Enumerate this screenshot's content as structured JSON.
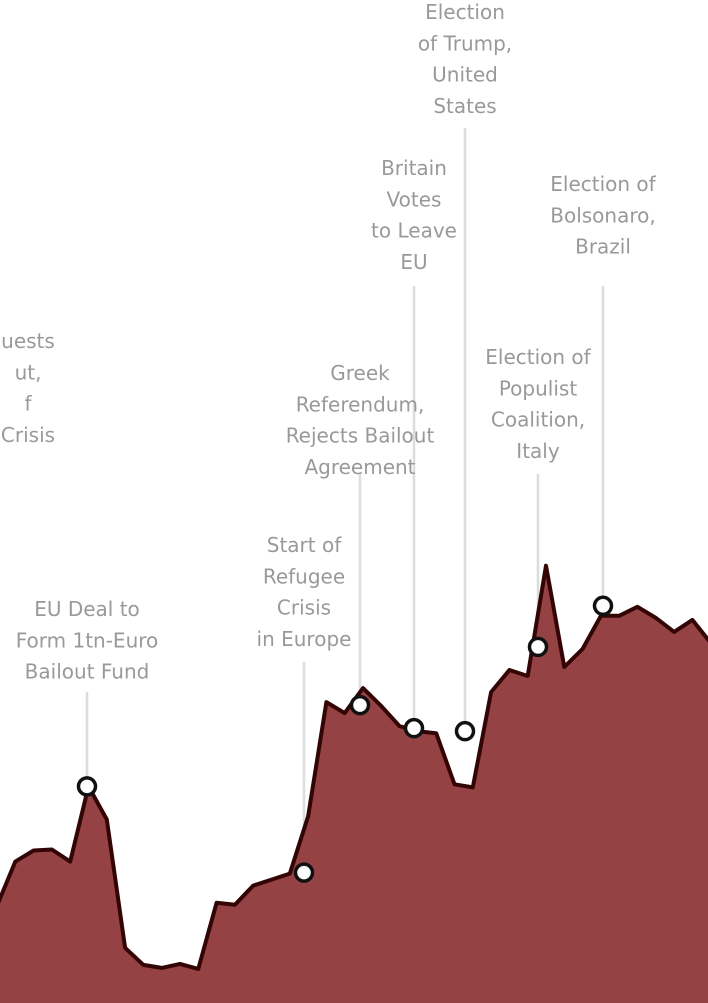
{
  "chart_data": {
    "type": "area",
    "title": "",
    "xlabel": "",
    "ylabel": "",
    "ylim": [
      0,
      100
    ],
    "colors": {
      "area_fill": "#954244",
      "area_line": "#330505",
      "leader_line": "#dddddd",
      "annotation_text": "#999999",
      "marker_fill": "#ffffff",
      "marker_stroke": "#111111"
    },
    "x": [
      0,
      1,
      2,
      3,
      4,
      5,
      6,
      7,
      8,
      9,
      10,
      11,
      12,
      13,
      14,
      15,
      16,
      17,
      18,
      19,
      20,
      21,
      22,
      23,
      24,
      25,
      26,
      27,
      28,
      29,
      30,
      31,
      32,
      33,
      34,
      35,
      36,
      37,
      38,
      39
    ],
    "values": [
      9.7,
      14.1,
      15.2,
      15.3,
      14.1,
      21.6,
      18.3,
      5.5,
      3.8,
      3.5,
      3.9,
      3.4,
      10.0,
      9.8,
      11.7,
      12.3,
      12.9,
      18.6,
      30.0,
      28.9,
      31.4,
      29.6,
      27.6,
      27.1,
      26.9,
      21.8,
      21.5,
      31.0,
      33.2,
      32.6,
      43.6,
      33.5,
      35.3,
      38.6,
      38.6,
      39.5,
      38.4,
      37.0,
      38.2,
      35.9
    ],
    "annotations": [
      {
        "index": 4.5,
        "value": 21.6,
        "lines": [
          "EU Deal to",
          "Form 1tn-Euro",
          "Bailout Fund"
        ]
      },
      {
        "index": 16.3,
        "value": 13.0,
        "lines": [
          "Start of",
          "Refugee",
          "Crisis",
          "in Europe"
        ]
      },
      {
        "index": 19.3,
        "value": 29.7,
        "lines": [
          "Greek",
          "Referendum,",
          "Rejects Bailout",
          "Agreement"
        ]
      },
      {
        "index": 22.9,
        "value": 27.4,
        "lines": [
          "Britain",
          "Votes",
          "to Leave",
          "EU"
        ]
      },
      {
        "index": 24.9,
        "value": 27.1,
        "lines": [
          "Election",
          "of Trump,",
          "United",
          "States"
        ]
      },
      {
        "index": 29.6,
        "value": 35.5,
        "lines": [
          "Election of",
          "Populist",
          "Coalition,",
          "Italy"
        ]
      },
      {
        "index": 32.4,
        "value": 39.6,
        "lines": [
          "Election of",
          "Bolsonaro,",
          "Brazil"
        ]
      },
      {
        "index": -1,
        "value": null,
        "lines": [
          "uests",
          "ut,",
          "f",
          "Crisis"
        ]
      }
    ]
  }
}
